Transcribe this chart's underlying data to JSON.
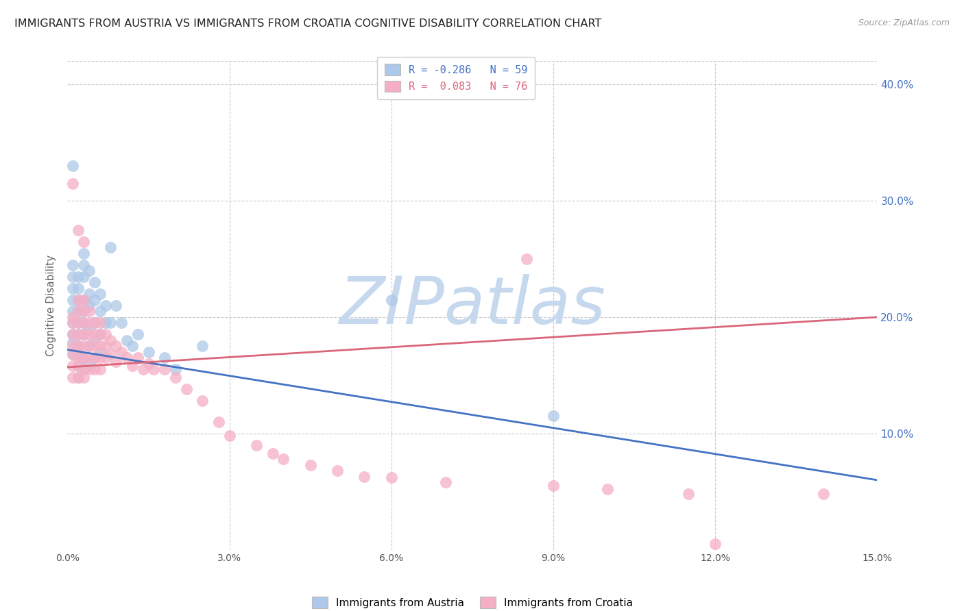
{
  "title": "IMMIGRANTS FROM AUSTRIA VS IMMIGRANTS FROM CROATIA COGNITIVE DISABILITY CORRELATION CHART",
  "source": "Source: ZipAtlas.com",
  "ylabel": "Cognitive Disability",
  "xlim": [
    0.0,
    0.15
  ],
  "ylim": [
    0.0,
    0.42
  ],
  "xticks": [
    0.0,
    0.03,
    0.06,
    0.09,
    0.12,
    0.15
  ],
  "xtick_labels": [
    "0.0%",
    "3.0%",
    "6.0%",
    "9.0%",
    "12.0%",
    "15.0%"
  ],
  "yticks": [
    0.0,
    0.1,
    0.2,
    0.3,
    0.4
  ],
  "ytick_labels": [
    "",
    "10.0%",
    "20.0%",
    "30.0%",
    "40.0%"
  ],
  "legend1_label": "R = -0.286   N = 59",
  "legend2_label": "R =  0.083   N = 76",
  "legend_bottom1": "Immigrants from Austria",
  "legend_bottom2": "Immigrants from Croatia",
  "austria_color": "#adc8e8",
  "croatia_color": "#f5afc5",
  "austria_line_color": "#4472c4",
  "croatia_line_color": "#d9667a",
  "austria_line": [
    0.0,
    0.172,
    0.15,
    0.06
  ],
  "croatia_line": [
    0.0,
    0.157,
    0.15,
    0.2
  ],
  "watermark": "ZIPatlas",
  "watermark_color": "#c5d8ee",
  "background_color": "#ffffff",
  "grid_color": "#cccccc",
  "title_color": "#222222",
  "axis_label_color": "#666666",
  "right_tick_color": "#4472c4",
  "austria_scatter": [
    [
      0.001,
      0.33
    ],
    [
      0.001,
      0.245
    ],
    [
      0.001,
      0.235
    ],
    [
      0.001,
      0.225
    ],
    [
      0.001,
      0.215
    ],
    [
      0.001,
      0.205
    ],
    [
      0.001,
      0.195
    ],
    [
      0.001,
      0.185
    ],
    [
      0.001,
      0.178
    ],
    [
      0.001,
      0.168
    ],
    [
      0.002,
      0.235
    ],
    [
      0.002,
      0.225
    ],
    [
      0.002,
      0.215
    ],
    [
      0.002,
      0.205
    ],
    [
      0.002,
      0.195
    ],
    [
      0.002,
      0.185
    ],
    [
      0.002,
      0.175
    ],
    [
      0.002,
      0.168
    ],
    [
      0.002,
      0.158
    ],
    [
      0.002,
      0.148
    ],
    [
      0.003,
      0.255
    ],
    [
      0.003,
      0.245
    ],
    [
      0.003,
      0.235
    ],
    [
      0.003,
      0.215
    ],
    [
      0.003,
      0.205
    ],
    [
      0.003,
      0.195
    ],
    [
      0.003,
      0.185
    ],
    [
      0.003,
      0.165
    ],
    [
      0.003,
      0.155
    ],
    [
      0.004,
      0.24
    ],
    [
      0.004,
      0.22
    ],
    [
      0.004,
      0.21
    ],
    [
      0.004,
      0.19
    ],
    [
      0.004,
      0.175
    ],
    [
      0.004,
      0.16
    ],
    [
      0.005,
      0.23
    ],
    [
      0.005,
      0.215
    ],
    [
      0.005,
      0.195
    ],
    [
      0.005,
      0.18
    ],
    [
      0.005,
      0.165
    ],
    [
      0.006,
      0.22
    ],
    [
      0.006,
      0.205
    ],
    [
      0.006,
      0.185
    ],
    [
      0.006,
      0.17
    ],
    [
      0.007,
      0.21
    ],
    [
      0.007,
      0.195
    ],
    [
      0.008,
      0.26
    ],
    [
      0.008,
      0.195
    ],
    [
      0.009,
      0.21
    ],
    [
      0.01,
      0.195
    ],
    [
      0.011,
      0.18
    ],
    [
      0.012,
      0.175
    ],
    [
      0.013,
      0.185
    ],
    [
      0.015,
      0.17
    ],
    [
      0.018,
      0.165
    ],
    [
      0.02,
      0.155
    ],
    [
      0.025,
      0.175
    ],
    [
      0.06,
      0.215
    ],
    [
      0.09,
      0.115
    ]
  ],
  "croatia_scatter": [
    [
      0.001,
      0.315
    ],
    [
      0.001,
      0.2
    ],
    [
      0.001,
      0.195
    ],
    [
      0.001,
      0.185
    ],
    [
      0.001,
      0.175
    ],
    [
      0.001,
      0.168
    ],
    [
      0.001,
      0.158
    ],
    [
      0.001,
      0.148
    ],
    [
      0.002,
      0.275
    ],
    [
      0.002,
      0.215
    ],
    [
      0.002,
      0.205
    ],
    [
      0.002,
      0.195
    ],
    [
      0.002,
      0.185
    ],
    [
      0.002,
      0.175
    ],
    [
      0.002,
      0.165
    ],
    [
      0.002,
      0.158
    ],
    [
      0.002,
      0.148
    ],
    [
      0.003,
      0.265
    ],
    [
      0.003,
      0.215
    ],
    [
      0.003,
      0.205
    ],
    [
      0.003,
      0.195
    ],
    [
      0.003,
      0.185
    ],
    [
      0.003,
      0.175
    ],
    [
      0.003,
      0.165
    ],
    [
      0.003,
      0.155
    ],
    [
      0.003,
      0.148
    ],
    [
      0.004,
      0.205
    ],
    [
      0.004,
      0.195
    ],
    [
      0.004,
      0.185
    ],
    [
      0.004,
      0.175
    ],
    [
      0.004,
      0.165
    ],
    [
      0.004,
      0.155
    ],
    [
      0.005,
      0.195
    ],
    [
      0.005,
      0.185
    ],
    [
      0.005,
      0.175
    ],
    [
      0.005,
      0.165
    ],
    [
      0.005,
      0.155
    ],
    [
      0.006,
      0.195
    ],
    [
      0.006,
      0.185
    ],
    [
      0.006,
      0.175
    ],
    [
      0.006,
      0.165
    ],
    [
      0.006,
      0.155
    ],
    [
      0.007,
      0.185
    ],
    [
      0.007,
      0.175
    ],
    [
      0.007,
      0.165
    ],
    [
      0.008,
      0.18
    ],
    [
      0.008,
      0.168
    ],
    [
      0.009,
      0.175
    ],
    [
      0.009,
      0.162
    ],
    [
      0.01,
      0.17
    ],
    [
      0.011,
      0.165
    ],
    [
      0.012,
      0.158
    ],
    [
      0.013,
      0.165
    ],
    [
      0.014,
      0.155
    ],
    [
      0.015,
      0.16
    ],
    [
      0.016,
      0.155
    ],
    [
      0.018,
      0.155
    ],
    [
      0.02,
      0.148
    ],
    [
      0.022,
      0.138
    ],
    [
      0.025,
      0.128
    ],
    [
      0.028,
      0.11
    ],
    [
      0.03,
      0.098
    ],
    [
      0.035,
      0.09
    ],
    [
      0.038,
      0.083
    ],
    [
      0.04,
      0.078
    ],
    [
      0.045,
      0.073
    ],
    [
      0.05,
      0.068
    ],
    [
      0.055,
      0.063
    ],
    [
      0.06,
      0.062
    ],
    [
      0.07,
      0.058
    ],
    [
      0.085,
      0.25
    ],
    [
      0.09,
      0.055
    ],
    [
      0.1,
      0.052
    ],
    [
      0.115,
      0.048
    ],
    [
      0.12,
      0.005
    ],
    [
      0.14,
      0.048
    ]
  ]
}
